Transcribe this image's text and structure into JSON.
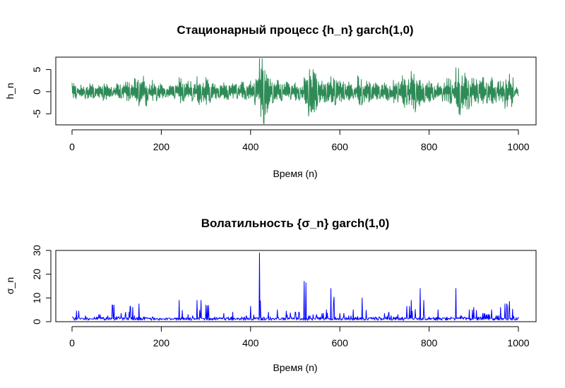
{
  "chart_data": [
    {
      "type": "line",
      "title": "Стационарный процесс {h_n} garch(1,0)",
      "xlabel": "Время (n)",
      "ylabel": "h_n",
      "xlim": [
        0,
        1000
      ],
      "ylim": [
        -7.5,
        7.8
      ],
      "xticks": [
        0,
        200,
        400,
        600,
        800,
        1000
      ],
      "yticks": [
        -5,
        0,
        5
      ],
      "grid": false,
      "color": "#2e8b57",
      "series_length": 1000,
      "series": [
        {
          "x_step": 10,
          "values": [
            2.0,
            -0.8,
            1.5,
            -1.6,
            1.8,
            -1.2,
            1.4,
            -2.0,
            1.2,
            -1.0,
            1.8,
            -1.5,
            2.2,
            -1.6,
            3.0,
            -3.2,
            3.5,
            -2.0,
            2.6,
            -1.8,
            1.5,
            -1.2,
            1.4,
            -1.6,
            3.2,
            -2.2,
            2.4,
            -1.8,
            3.4,
            -2.4,
            3.2,
            -2.0,
            1.6,
            -1.4,
            2.0,
            -1.8,
            1.8,
            -1.6,
            2.2,
            -1.8,
            2.4,
            -3.0,
            7.5,
            -7.5,
            3.0,
            -2.4,
            2.6,
            -2.0,
            2.2,
            -1.8,
            2.0,
            -1.6,
            3.2,
            -5.5,
            5.0,
            -2.6,
            2.4,
            -2.2,
            3.4,
            -3.0,
            2.4,
            -1.8,
            2.2,
            -1.6,
            3.6,
            -2.6,
            2.4,
            -1.8,
            2.0,
            -1.6,
            2.0,
            -1.8,
            2.6,
            -2.4,
            3.6,
            -3.0,
            4.6,
            -3.6,
            2.6,
            -2.0,
            2.4,
            -1.8,
            2.0,
            -2.2,
            3.0,
            -2.6,
            5.4,
            -3.8,
            4.2,
            -3.4,
            3.0,
            -2.6,
            3.2,
            -2.6,
            3.2,
            -2.4,
            2.4,
            -3.8,
            4.0,
            -1.0
          ]
        }
      ]
    },
    {
      "type": "line",
      "title": "Волатильность {σ_n} garch(1,0)",
      "xlabel": "Время (n)",
      "ylabel": "σ_n",
      "xlim": [
        0,
        1000
      ],
      "ylim": [
        0,
        30
      ],
      "xticks": [
        0,
        200,
        400,
        600,
        800,
        1000
      ],
      "yticks": [
        0,
        10,
        20,
        30
      ],
      "grid": false,
      "color": "#0000ff",
      "series_length": 1000,
      "series": [
        {
          "x_step": 10,
          "values": [
            2.0,
            4.5,
            1.5,
            2.5,
            1.2,
            2.0,
            3.0,
            1.8,
            2.5,
            7.0,
            2.2,
            3.5,
            4.0,
            6.5,
            2.5,
            7.5,
            2.0,
            1.5,
            2.0,
            1.4,
            1.2,
            1.5,
            1.2,
            1.6,
            9.0,
            1.8,
            3.0,
            2.5,
            9.0,
            1.4,
            7.0,
            1.5,
            2.0,
            1.8,
            3.5,
            2.0,
            4.0,
            1.5,
            2.0,
            2.5,
            6.5,
            1.8,
            29.0,
            2.0,
            4.0,
            1.5,
            5.0,
            1.6,
            4.5,
            2.0,
            4.0,
            1.8,
            17.0,
            2.5,
            3.0,
            2.0,
            3.5,
            5.0,
            14.0,
            2.0,
            3.5,
            1.8,
            2.5,
            5.0,
            2.2,
            10.0,
            1.6,
            1.8,
            2.0,
            1.5,
            3.5,
            4.0,
            2.0,
            3.0,
            2.0,
            6.5,
            9.0,
            1.8,
            14.0,
            2.5,
            2.0,
            1.8,
            5.0,
            1.6,
            2.0,
            1.5,
            14.0,
            2.5,
            2.0,
            5.0,
            6.0,
            2.0,
            3.5,
            3.0,
            5.0,
            2.5,
            6.0,
            7.5,
            8.5,
            2.0
          ]
        }
      ]
    }
  ]
}
